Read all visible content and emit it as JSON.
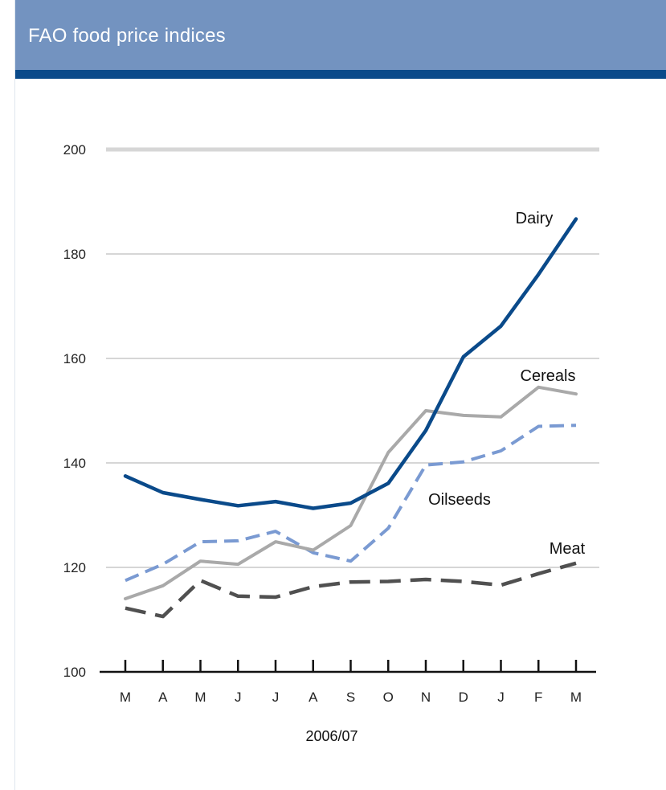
{
  "header": {
    "title": "FAO food price indices"
  },
  "colors": {
    "header_bg": "#7393c0",
    "header_rule": "#0a4a8a"
  },
  "chart_data": {
    "type": "line",
    "title": "FAO food price indices",
    "xlabel": "2006/07",
    "ylabel": "",
    "ylim": [
      100,
      200
    ],
    "yticks": [
      100,
      120,
      140,
      160,
      180,
      200
    ],
    "x": [
      "M",
      "A",
      "M",
      "J",
      "J",
      "A",
      "S",
      "O",
      "N",
      "D",
      "J",
      "F",
      "M"
    ],
    "grid": "horizontal",
    "series": [
      {
        "name": "Dairy",
        "style": "solid",
        "color": "#0a4a8a",
        "values": [
          137.5,
          134.3,
          133,
          131.8,
          132.6,
          131.3,
          132.3,
          136.1,
          146.2,
          160.3,
          166.2,
          176.1,
          186.7
        ]
      },
      {
        "name": "Cereals",
        "style": "solid",
        "color": "#a9a9a9",
        "values": [
          114,
          116.5,
          121.2,
          120.6,
          124.9,
          123.3,
          128,
          142,
          150,
          149.1,
          148.8,
          154.5,
          153.2
        ]
      },
      {
        "name": "Oilseeds",
        "style": "dashed",
        "color": "#7a9ad2",
        "values": [
          117.5,
          120.6,
          124.9,
          125.1,
          126.9,
          122.8,
          121.2,
          127.5,
          139.6,
          140.2,
          142.3,
          147,
          147.2
        ]
      },
      {
        "name": "Meat",
        "style": "dashed",
        "color": "#505050",
        "values": [
          112.2,
          110.6,
          117.5,
          114.5,
          114.3,
          116.3,
          117.2,
          117.3,
          117.7,
          117.3,
          116.6,
          118.8,
          120.8
        ]
      }
    ]
  }
}
